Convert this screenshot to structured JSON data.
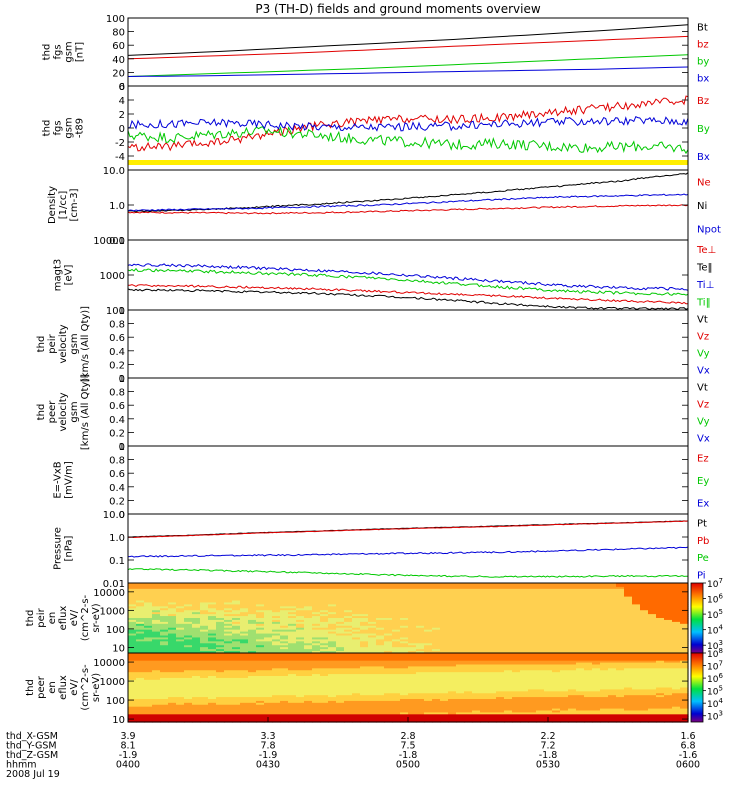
{
  "title": "P3 (TH-D) fields and ground moments overview",
  "chart_data": [
    {
      "type": "line",
      "ylabel": [
        "thd",
        "fgs",
        "gsm",
        "[nT]"
      ],
      "ylim": [
        0,
        100
      ],
      "yticks": [
        0,
        20,
        40,
        60,
        80,
        100
      ],
      "ylog": false,
      "series": [
        {
          "name": "Bt",
          "color": "#000000",
          "kind": "line",
          "values": [
            45,
            50,
            56,
            62,
            68,
            75,
            82,
            90
          ]
        },
        {
          "name": "bz",
          "color": "#e00000",
          "kind": "line",
          "values": [
            40,
            44,
            48,
            53,
            58,
            63,
            68,
            73
          ]
        },
        {
          "name": "by",
          "color": "#00c800",
          "kind": "line",
          "values": [
            14,
            18,
            22,
            26,
            31,
            36,
            41,
            46
          ]
        },
        {
          "name": "bx",
          "color": "#0000d8",
          "kind": "line",
          "values": [
            14,
            15,
            17,
            19,
            21,
            23,
            25,
            28
          ]
        }
      ]
    },
    {
      "type": "line",
      "ylabel": [
        "thd",
        "fgs",
        "gsm",
        "-t89"
      ],
      "ylim": [
        -6,
        6
      ],
      "yticks": [
        -4,
        -2,
        0,
        2,
        4,
        6
      ],
      "ylog": false,
      "yellow_bar": true,
      "series": [
        {
          "name": "Bz",
          "color": "#e00000",
          "kind": "noisy",
          "noise": 0.2,
          "values": [
            -2.8,
            -2.6,
            -2.0,
            -0.8,
            0.3,
            1.0,
            1.3,
            1.2,
            1.5,
            2.2,
            2.8,
            3.4,
            4.0
          ]
        },
        {
          "name": "By",
          "color": "#00c800",
          "kind": "noisy",
          "noise": 0.25,
          "values": [
            -1.0,
            -1.4,
            -0.8,
            -0.4,
            -1.0,
            -1.6,
            -2.0,
            -2.4,
            -2.2,
            -2.6,
            -2.8,
            -2.6,
            -2.9
          ]
        },
        {
          "name": "Bx",
          "color": "#0000d8",
          "kind": "noisy",
          "noise": 0.2,
          "values": [
            0.4,
            0.6,
            0.8,
            0.5,
            0.2,
            0.1,
            0.2,
            0.3,
            0.6,
            0.8,
            1.0,
            1.1,
            1.0
          ]
        }
      ]
    },
    {
      "type": "line",
      "ylabel": [
        "Density",
        "[1/cc]",
        "[cm-3]"
      ],
      "ylim": [
        0.1,
        10
      ],
      "yticks": [
        0.1,
        1.0,
        10.0
      ],
      "ylog": true,
      "series": [
        {
          "name": "Ne",
          "color": "#e00000",
          "kind": "noisy",
          "noise": 0.02,
          "values": [
            0.62,
            0.6,
            0.58,
            0.6,
            0.65,
            0.72,
            0.8,
            0.88,
            0.95,
            1.0
          ]
        },
        {
          "name": "Ni",
          "color": "#000000",
          "kind": "noisy",
          "noise": 0.02,
          "values": [
            0.65,
            0.72,
            0.85,
            1.05,
            1.35,
            1.8,
            2.5,
            3.5,
            5.0,
            8.0
          ]
        },
        {
          "name": "Npot",
          "color": "#0000d8",
          "kind": "noisy",
          "noise": 0.02,
          "values": [
            0.7,
            0.75,
            0.8,
            0.9,
            1.0,
            1.2,
            1.45,
            1.7,
            1.85,
            2.0
          ]
        }
      ]
    },
    {
      "type": "line",
      "ylabel": [
        "magt3",
        "[eV]"
      ],
      "ylim": [
        100,
        10000
      ],
      "yticks": [
        100,
        1000,
        10000
      ],
      "ylog": true,
      "series": [
        {
          "name": "Te⊥",
          "color": "#e00000",
          "kind": "noisy",
          "noise": 0.03,
          "values": [
            500,
            480,
            440,
            400,
            340,
            290,
            250,
            210,
            180,
            160
          ]
        },
        {
          "name": "Te‖",
          "color": "#000000",
          "kind": "noisy",
          "noise": 0.03,
          "values": [
            380,
            360,
            330,
            300,
            250,
            200,
            150,
            120,
            110,
            110
          ]
        },
        {
          "name": "Ti⊥",
          "color": "#0000d8",
          "kind": "noisy",
          "noise": 0.04,
          "values": [
            2000,
            1850,
            1600,
            1350,
            1100,
            850,
            650,
            500,
            420,
            400
          ]
        },
        {
          "name": "Ti‖",
          "color": "#00c800",
          "kind": "noisy",
          "noise": 0.04,
          "values": [
            1400,
            1300,
            1150,
            1000,
            800,
            600,
            450,
            350,
            300,
            280
          ]
        }
      ]
    },
    {
      "type": "line",
      "ylabel": [
        "thd",
        "peir",
        "velocity",
        "gsm",
        "[km/s (All Qty)]"
      ],
      "ylim": [
        0,
        1
      ],
      "yticks": [
        0.0,
        0.2,
        0.4,
        0.6,
        0.8,
        1.0
      ],
      "ylog": false,
      "series": [
        {
          "name": "Vt",
          "color": "#000000",
          "kind": "none",
          "values": []
        },
        {
          "name": "Vz",
          "color": "#e00000",
          "kind": "none",
          "values": []
        },
        {
          "name": "Vy",
          "color": "#00c800",
          "kind": "none",
          "values": []
        },
        {
          "name": "Vx",
          "color": "#0000d8",
          "kind": "none",
          "values": []
        }
      ]
    },
    {
      "type": "line",
      "ylabel": [
        "thd",
        "peer",
        "velocity",
        "gsm",
        "[km/s (All Qty)]"
      ],
      "ylim": [
        0,
        1
      ],
      "yticks": [
        0.0,
        0.2,
        0.4,
        0.6,
        0.8,
        1.0
      ],
      "ylog": false,
      "series": [
        {
          "name": "Vt",
          "color": "#000000",
          "kind": "none",
          "values": []
        },
        {
          "name": "Vz",
          "color": "#e00000",
          "kind": "none",
          "values": []
        },
        {
          "name": "Vy",
          "color": "#00c800",
          "kind": "none",
          "values": []
        },
        {
          "name": "Vx",
          "color": "#0000d8",
          "kind": "none",
          "values": []
        }
      ]
    },
    {
      "type": "line",
      "ylabel": [
        "E=-VxB",
        "[mV/m]"
      ],
      "ylim": [
        0,
        1
      ],
      "yticks": [
        0.0,
        0.2,
        0.4,
        0.6,
        0.8,
        1.0
      ],
      "ylog": false,
      "series": [
        {
          "name": "Ez",
          "color": "#e00000",
          "kind": "none",
          "values": []
        },
        {
          "name": "Ey",
          "color": "#00c800",
          "kind": "none",
          "values": []
        },
        {
          "name": "Ex",
          "color": "#0000d8",
          "kind": "none",
          "values": []
        }
      ]
    },
    {
      "type": "line",
      "ylabel": [
        "Pressure",
        "[nPa]"
      ],
      "ylim": [
        0.01,
        10
      ],
      "yticks": [
        0.01,
        0.1,
        1.0,
        10.0
      ],
      "ylog": true,
      "series": [
        {
          "name": "Pt",
          "color": "#000000",
          "kind": "noisy",
          "noise": 0.01,
          "values": [
            1.0,
            1.2,
            1.5,
            1.8,
            2.2,
            2.6,
            3.0,
            3.6,
            4.2,
            5.0
          ]
        },
        {
          "name": "Pb",
          "color": "#e00000",
          "kind": "noisy",
          "noise": 0.01,
          "values": [
            0.95,
            1.15,
            1.45,
            1.75,
            2.1,
            2.5,
            2.9,
            3.5,
            4.1,
            4.9
          ]
        },
        {
          "name": "Pe",
          "color": "#00c800",
          "kind": "noisy",
          "noise": 0.03,
          "values": [
            0.04,
            0.037,
            0.032,
            0.028,
            0.023,
            0.02,
            0.019,
            0.019,
            0.02,
            0.02
          ]
        },
        {
          "name": "Pi",
          "color": "#0000d8",
          "kind": "noisy",
          "noise": 0.03,
          "values": [
            0.14,
            0.15,
            0.16,
            0.17,
            0.19,
            0.2,
            0.22,
            0.25,
            0.3,
            0.35
          ]
        }
      ]
    },
    {
      "type": "heatmap",
      "ylabel": [
        "thd",
        "peir",
        "en",
        "eflux",
        "eV/",
        "(cm^2-s-",
        "sr-eV)"
      ],
      "ylim": [
        5,
        30000
      ],
      "yticks": [
        10,
        100,
        1000,
        10000
      ],
      "ylog": true,
      "colorbar": {
        "min_exp": 2.5,
        "max_exp": 7,
        "ticks": [
          3,
          4,
          5,
          6,
          7
        ]
      },
      "intensity": "ion"
    },
    {
      "type": "heatmap",
      "ylabel": [
        "thd",
        "peer",
        "en",
        "eflux",
        "eV/",
        "(cm^2-s-",
        "sr-eV)"
      ],
      "ylim": [
        7,
        30000
      ],
      "yticks": [
        10,
        100,
        1000,
        10000
      ],
      "ylog": true,
      "colorbar": {
        "min_exp": 2.5,
        "max_exp": 8,
        "ticks": [
          3,
          4,
          5,
          6,
          7,
          8
        ]
      },
      "intensity": "electron"
    }
  ],
  "xaxis": {
    "rows": [
      {
        "label": "thd_X-GSM",
        "values": [
          "3.9",
          "3.3",
          "2.8",
          "2.2",
          "1.6"
        ]
      },
      {
        "label": "thd_Y-GSM",
        "values": [
          "8.1",
          "7.8",
          "7.5",
          "7.2",
          "6.8"
        ]
      },
      {
        "label": "thd_Z-GSM",
        "values": [
          "-1.9",
          "-1.9",
          "-1.8",
          "-1.8",
          "-1.6"
        ]
      },
      {
        "label": "hhmm",
        "values": [
          "0400",
          "0430",
          "0500",
          "0530",
          "0600"
        ]
      }
    ],
    "date": "2008 Jul 19"
  }
}
